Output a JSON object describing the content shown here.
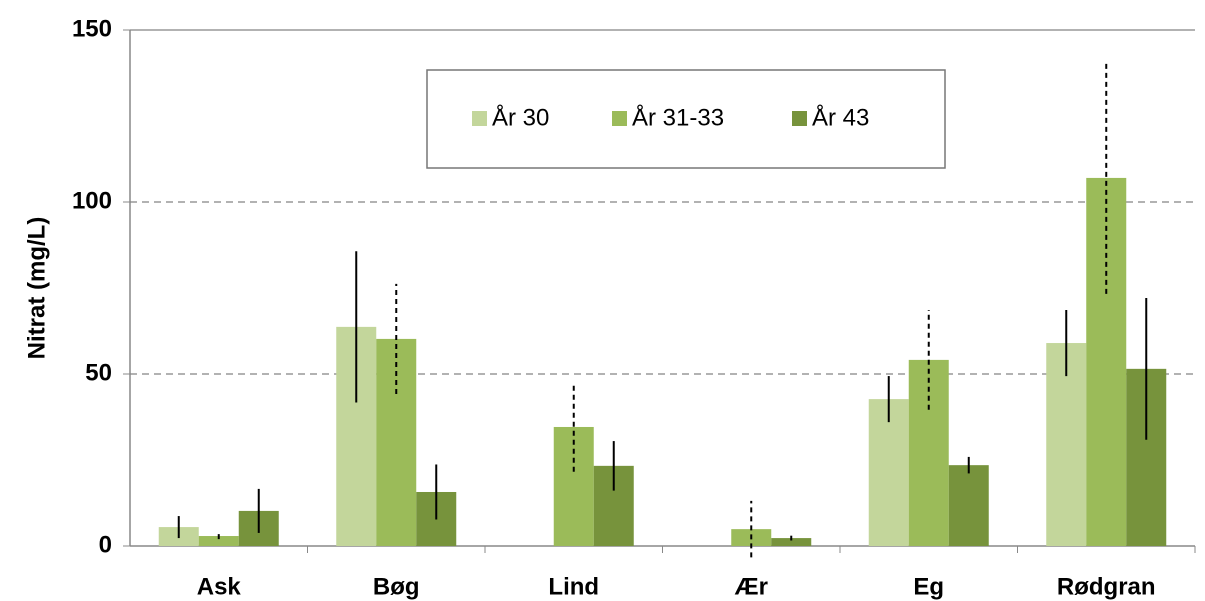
{
  "chart_data": {
    "type": "bar",
    "y_label": "Nitrat (mg/L)",
    "categories": [
      "Ask",
      "Bøg",
      "Lind",
      "Ær",
      "Eg",
      "Rødgran"
    ],
    "series": [
      {
        "name": "År 30",
        "color": "#c3d69b",
        "error_style": "solid",
        "values": [
          5.5,
          63.7,
          null,
          null,
          42.7,
          59
        ],
        "errors": [
          3.2,
          22,
          null,
          null,
          6.7,
          9.6
        ]
      },
      {
        "name": "År 31-33",
        "color": "#9bbb59",
        "error_style": "dashed",
        "values": [
          2.9,
          60.2,
          34.6,
          4.9,
          54.1,
          107
        ],
        "errors": [
          0.9,
          16,
          13,
          8.2,
          14.5,
          33.7
        ]
      },
      {
        "name": "År 43",
        "color": "#77933c",
        "error_style": "solid",
        "values": [
          10.2,
          15.7,
          23.3,
          2.3,
          23.5,
          51.5
        ],
        "errors": [
          6.4,
          8,
          7.2,
          0.7,
          2.4,
          20.6
        ]
      }
    ],
    "ylim": [
      0,
      150
    ],
    "yticks": [
      0,
      50,
      100,
      150
    ],
    "grid": true,
    "legend": "top"
  }
}
